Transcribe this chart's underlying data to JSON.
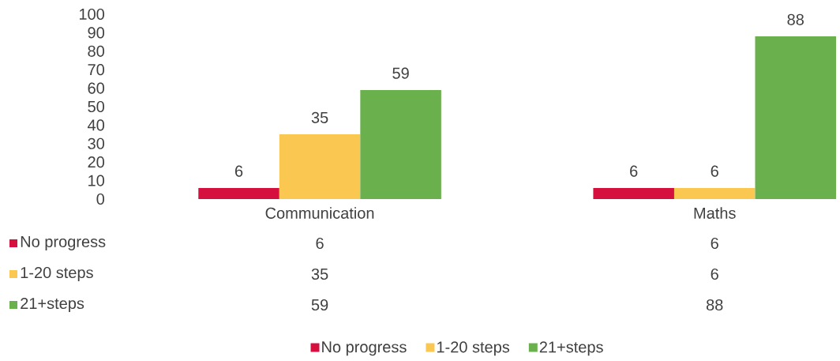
{
  "chart_data": {
    "type": "bar",
    "categories": [
      "Communication",
      "Maths"
    ],
    "series": [
      {
        "name": "No progress",
        "color": "#d6103e",
        "values": [
          6,
          6
        ]
      },
      {
        "name": "1-20 steps",
        "color": "#fac850",
        "values": [
          35,
          6
        ]
      },
      {
        "name": "21+steps",
        "color": "#6ab04c",
        "values": [
          59,
          88
        ]
      }
    ],
    "ylim": [
      0,
      100
    ],
    "yticks": [
      0,
      10,
      20,
      30,
      40,
      50,
      60,
      70,
      80,
      90,
      100
    ],
    "data_labels": true,
    "legend": "bottom",
    "annotations": [
      "6",
      "6",
      "35",
      "6",
      "59",
      "88"
    ]
  }
}
